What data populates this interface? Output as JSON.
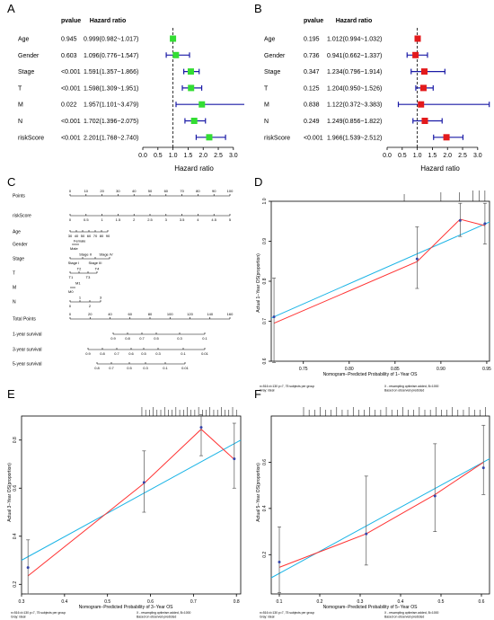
{
  "chart_data": [
    {
      "id": "A",
      "type": "forest",
      "panel_label": "A",
      "header_pvalue": "pvalue",
      "header_hr": "Hazard ratio",
      "xlabel": "Hazard ratio",
      "xlim": [
        0,
        3.6
      ],
      "xticks": [
        "0.0",
        "0.5",
        "1.0",
        "1.5",
        "2.0",
        "2.5",
        "3.0"
      ],
      "reference_line": 1,
      "marker_color": "#33dd33",
      "ci_color": "#1a1aa6",
      "rows": [
        {
          "label": "Age",
          "pvalue": "0.945",
          "hr_text": "0.999(0.982~1.017)",
          "hr": 0.999,
          "lo": 0.982,
          "hi": 1.017
        },
        {
          "label": "Gender",
          "pvalue": "0.603",
          "hr_text": "1.096(0.776~1.547)",
          "hr": 1.096,
          "lo": 0.776,
          "hi": 1.547
        },
        {
          "label": "Stage",
          "pvalue": "<0.001",
          "hr_text": "1.591(1.357~1.866)",
          "hr": 1.591,
          "lo": 1.357,
          "hi": 1.866
        },
        {
          "label": "T",
          "pvalue": "<0.001",
          "hr_text": "1.598(1.309~1.951)",
          "hr": 1.598,
          "lo": 1.309,
          "hi": 1.951
        },
        {
          "label": "M",
          "pvalue": "0.022",
          "hr_text": "1.957(1.101~3.479)",
          "hr": 1.957,
          "lo": 1.101,
          "hi": 3.479
        },
        {
          "label": "N",
          "pvalue": "<0.001",
          "hr_text": "1.702(1.396~2.075)",
          "hr": 1.702,
          "lo": 1.396,
          "hi": 2.075
        },
        {
          "label": "riskScore",
          "pvalue": "<0.001",
          "hr_text": "2.201(1.768~2.740)",
          "hr": 2.201,
          "lo": 1.768,
          "hi": 2.74
        }
      ]
    },
    {
      "id": "B",
      "type": "forest",
      "panel_label": "B",
      "header_pvalue": "pvalue",
      "header_hr": "Hazard ratio",
      "xlabel": "Hazard ratio",
      "xlim": [
        0,
        3.6
      ],
      "xticks": [
        "0.0",
        "0.5",
        "1.0",
        "1.5",
        "2.0",
        "2.5",
        "3.0"
      ],
      "reference_line": 1,
      "marker_color": "#e31a1c",
      "ci_color": "#1a1aa6",
      "rows": [
        {
          "label": "Age",
          "pvalue": "0.195",
          "hr_text": "1.012(0.994~1.032)",
          "hr": 1.012,
          "lo": 0.994,
          "hi": 1.032
        },
        {
          "label": "Gender",
          "pvalue": "0.736",
          "hr_text": "0.941(0.662~1.337)",
          "hr": 0.941,
          "lo": 0.662,
          "hi": 1.337
        },
        {
          "label": "Stage",
          "pvalue": "0.347",
          "hr_text": "1.234(0.796~1.914)",
          "hr": 1.234,
          "lo": 0.796,
          "hi": 1.914
        },
        {
          "label": "T",
          "pvalue": "0.125",
          "hr_text": "1.204(0.950~1.526)",
          "hr": 1.204,
          "lo": 0.95,
          "hi": 1.526
        },
        {
          "label": "M",
          "pvalue": "0.838",
          "hr_text": "1.122(0.372~3.383)",
          "hr": 1.122,
          "lo": 0.372,
          "hi": 3.383
        },
        {
          "label": "N",
          "pvalue": "0.249",
          "hr_text": "1.249(0.856~1.822)",
          "hr": 1.249,
          "lo": 0.856,
          "hi": 1.822
        },
        {
          "label": "riskScore",
          "pvalue": "<0.001",
          "hr_text": "1.966(1.539~2.512)",
          "hr": 1.966,
          "lo": 1.539,
          "hi": 2.512
        }
      ]
    },
    {
      "id": "C",
      "type": "nomogram",
      "panel_label": "C",
      "rows": [
        {
          "label": "Points",
          "axis": [
            0,
            100
          ],
          "ticks": [
            "0",
            "10",
            "20",
            "30",
            "40",
            "50",
            "60",
            "70",
            "80",
            "90",
            "100"
          ]
        },
        {
          "label": "riskScore",
          "axis": [
            0,
            5
          ],
          "ticks": [
            "0",
            "0.5",
            "1",
            "1.5",
            "2",
            "2.5",
            "3",
            "3.5",
            "4",
            "4.5",
            "5"
          ]
        },
        {
          "label": "Age",
          "axis": [
            30,
            90
          ],
          "ticks": [
            "30",
            "40",
            "50",
            "60",
            "70",
            "80",
            "90"
          ]
        },
        {
          "label": "Gender",
          "ticks": [
            "Female",
            "Male"
          ]
        },
        {
          "label": "Stage",
          "ticks": [
            "Stage II",
            "Stage IV",
            "Stage I",
            "Stage III"
          ]
        },
        {
          "label": "T",
          "ticks": [
            "T2",
            "T4",
            "T1",
            "T3"
          ]
        },
        {
          "label": "M",
          "ticks": [
            "M1",
            "M0"
          ]
        },
        {
          "label": "N",
          "ticks": [
            "1",
            "3",
            "0",
            "2"
          ]
        },
        {
          "label": "Total Points",
          "axis": [
            0,
            160
          ],
          "ticks": [
            "0",
            "20",
            "40",
            "60",
            "80",
            "100",
            "120",
            "140",
            "160"
          ]
        },
        {
          "label": "1-year survival",
          "ticks": [
            "0.9",
            "0.8",
            "0.7",
            "0.5",
            "0.3",
            "0.1"
          ]
        },
        {
          "label": "3-year survival",
          "ticks": [
            "0.9",
            "0.8",
            "0.7",
            "0.6",
            "0.5",
            "0.3",
            "0.1",
            "0.01"
          ]
        },
        {
          "label": "5-year survival",
          "ticks": [
            "0.8",
            "0.7",
            "0.5",
            "0.3",
            "0.1",
            "0.01"
          ]
        }
      ]
    },
    {
      "id": "D",
      "type": "calibration",
      "panel_label": "D",
      "xlabel": "Nomogram−Predicted Probability of 1−Year OS",
      "ylabel": "Actual 1−Year OS(proportion)",
      "xlim": [
        0.715,
        0.953
      ],
      "ylim": [
        0.6,
        1.0
      ],
      "xticks": [
        0.75,
        0.8,
        0.85,
        0.9,
        0.95
      ],
      "xtick_labels": [
        "0.75",
        "0.80",
        "0.85",
        "0.90",
        "0.95"
      ],
      "yticks": [
        0.6,
        0.7,
        0.8,
        0.9,
        1.0
      ],
      "ytick_labels": [
        "0.6",
        "0.7",
        "0.8",
        "0.9",
        "1.0"
      ],
      "series": [
        {
          "name": "Ideal",
          "color": "#1ab4e6",
          "x": [
            0.715,
            0.953
          ],
          "y": [
            0.708,
            0.948
          ]
        },
        {
          "name": "Observed",
          "color": "#ff3333",
          "x": [
            0.718,
            0.874,
            0.921,
            0.948
          ],
          "y": [
            0.695,
            0.849,
            0.955,
            0.939
          ]
        }
      ],
      "points": [
        {
          "x": 0.718,
          "y": 0.711,
          "lo": 0.597,
          "hi": 0.808
        },
        {
          "x": 0.874,
          "y": 0.856,
          "lo": 0.782,
          "hi": 0.936
        },
        {
          "x": 0.921,
          "y": 0.952,
          "lo": 0.912,
          "hi": 0.995
        },
        {
          "x": 0.948,
          "y": 0.944,
          "lo": 0.893,
          "hi": 0.995
        }
      ],
      "footer_left": "n=516 d=130 p=7, 75 subjects per group\nGray: ideal",
      "footer_right": "X - resampling optimism added, B=1000\nBased on observed-predicted"
    },
    {
      "id": "E",
      "type": "calibration",
      "panel_label": "E",
      "xlabel": "Nomogram−Predicted Probability of 3−Year OS",
      "ylabel": "Actual 3−Year OS(proportion)",
      "xlim": [
        0.3,
        0.81
      ],
      "ylim": [
        0.16,
        0.9
      ],
      "xticks": [
        0.3,
        0.4,
        0.5,
        0.6,
        0.7,
        0.8
      ],
      "xtick_labels": [
        "0.3",
        "0.4",
        "0.5",
        "0.6",
        "0.7",
        "0.8"
      ],
      "yticks": [
        0.2,
        0.4,
        0.6,
        0.8
      ],
      "ytick_labels": [
        "0.2",
        "0.4",
        "0.6",
        "0.8"
      ],
      "series": [
        {
          "name": "Ideal",
          "color": "#1ab4e6",
          "x": [
            0.3,
            0.81
          ],
          "y": [
            0.3,
            0.8
          ]
        },
        {
          "name": "Observed",
          "color": "#ff3333",
          "x": [
            0.315,
            0.585,
            0.718,
            0.795
          ],
          "y": [
            0.235,
            0.62,
            0.845,
            0.72
          ]
        }
      ],
      "points": [
        {
          "x": 0.315,
          "y": 0.27,
          "lo": 0.16,
          "hi": 0.385
        },
        {
          "x": 0.585,
          "y": 0.624,
          "lo": 0.5,
          "hi": 0.755
        },
        {
          "x": 0.718,
          "y": 0.853,
          "lo": 0.735,
          "hi": 0.905
        },
        {
          "x": 0.795,
          "y": 0.722,
          "lo": 0.6,
          "hi": 0.87
        }
      ],
      "footer_left": "n=516 d=130 p=7, 75 subjects per group\nGray: ideal",
      "footer_right": "X - resampling optimism added, B=1000\nBased on observed-predicted"
    },
    {
      "id": "F",
      "type": "calibration",
      "panel_label": "F",
      "xlabel": "Nomogram−Predicted Probability of 5−Year OS",
      "ylabel": "Actual 5−Year OS(proportion)",
      "xlim": [
        0.08,
        0.62
      ],
      "ylim": [
        0.03,
        0.8
      ],
      "xticks": [
        0.1,
        0.2,
        0.3,
        0.4,
        0.5,
        0.6
      ],
      "xtick_labels": [
        "0.1",
        "0.2",
        "0.3",
        "0.4",
        "0.5",
        "0.6"
      ],
      "yticks": [
        0.2,
        0.4,
        0.6
      ],
      "ytick_labels": [
        "0.2",
        "0.4",
        "0.6"
      ],
      "series": [
        {
          "name": "Ideal",
          "color": "#1ab4e6",
          "x": [
            0.08,
            0.62
          ],
          "y": [
            0.1,
            0.615
          ]
        },
        {
          "name": "Observed",
          "color": "#ff3333",
          "x": [
            0.1,
            0.315,
            0.485,
            0.605
          ],
          "y": [
            0.145,
            0.29,
            0.46,
            0.6
          ]
        }
      ],
      "points": [
        {
          "x": 0.1,
          "y": 0.168,
          "lo": 0.035,
          "hi": 0.32
        },
        {
          "x": 0.315,
          "y": 0.29,
          "lo": 0.155,
          "hi": 0.54
        },
        {
          "x": 0.485,
          "y": 0.454,
          "lo": 0.3,
          "hi": 0.68
        },
        {
          "x": 0.605,
          "y": 0.576,
          "lo": 0.46,
          "hi": 0.76
        }
      ],
      "footer_left": "n=516 d=130 p=7, 75 subjects per group\nGray: ideal",
      "footer_right": "X - resampling optimism added, B=1000\nBased on observed-predicted"
    }
  ]
}
